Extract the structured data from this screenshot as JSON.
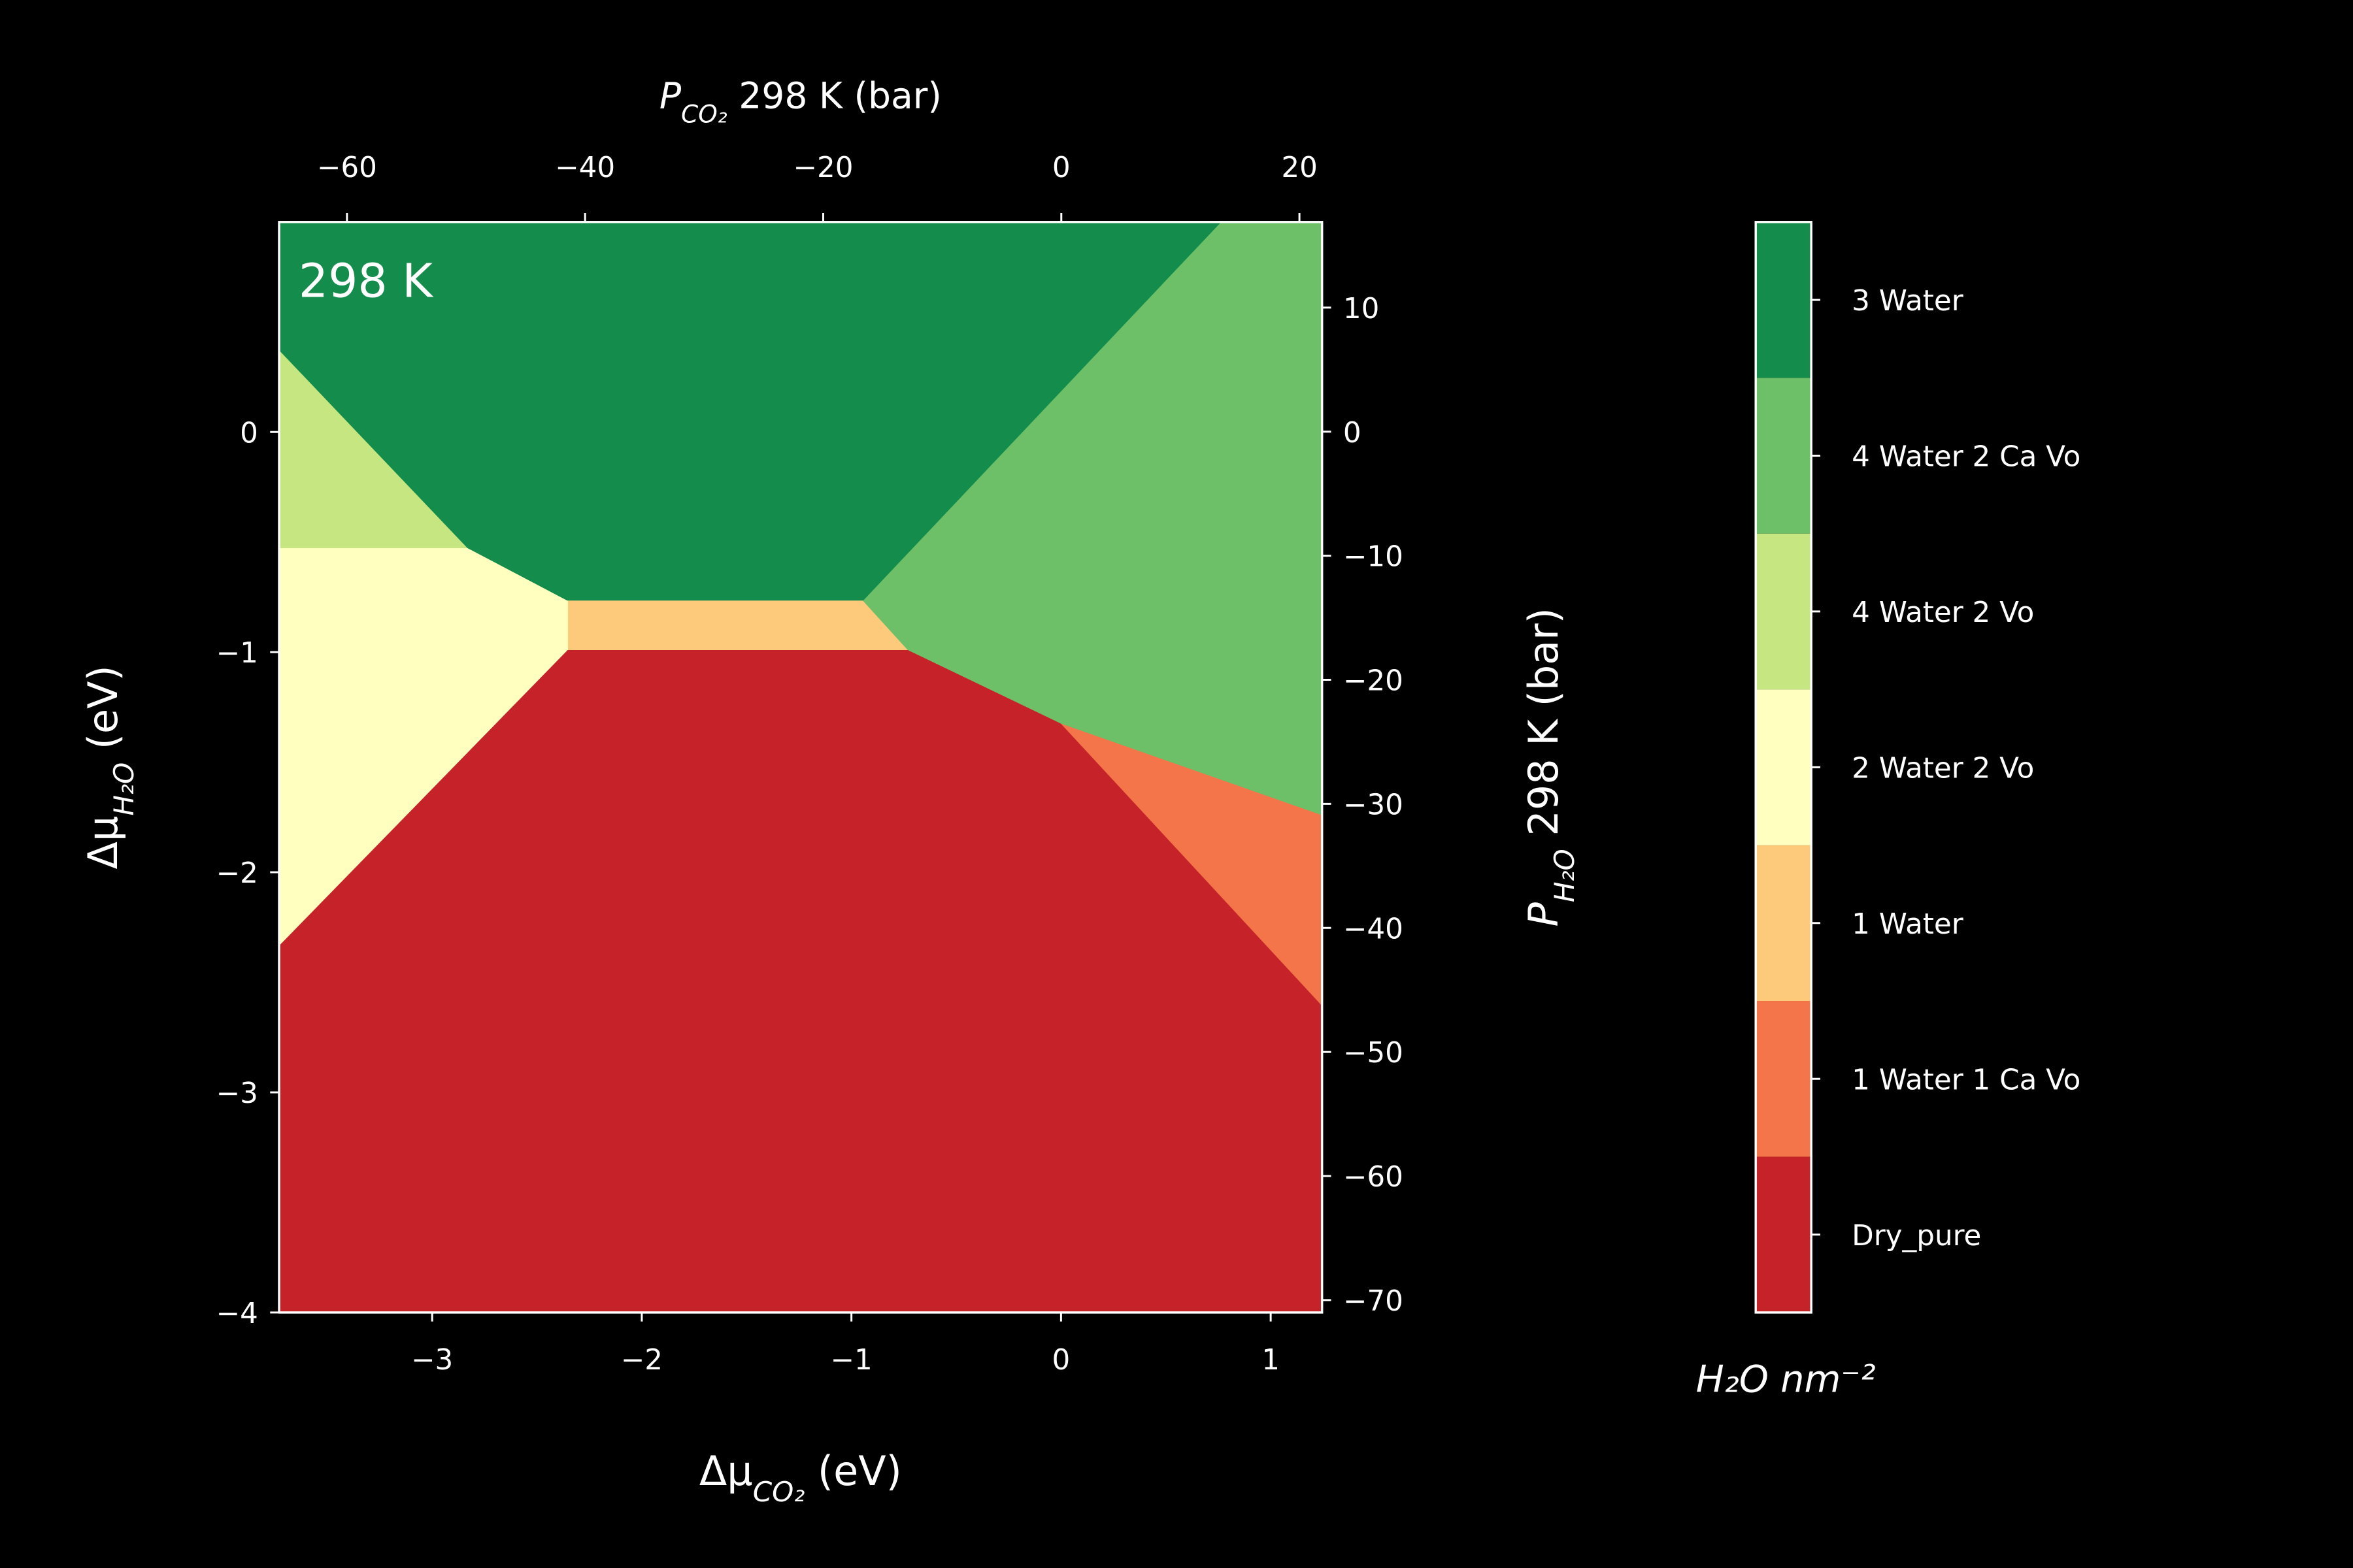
{
  "chart_data": {
    "type": "phase",
    "annotation": "298 K",
    "xlabel": [
      {
        "text": "Δμ"
      },
      {
        "text": "CO₂",
        "sub": true
      },
      {
        "text": " (eV)"
      }
    ],
    "ylabel": [
      {
        "text": "Δμ"
      },
      {
        "text": "H₂O",
        "sub": true
      },
      {
        "text": " (eV)"
      }
    ],
    "x2label": [
      {
        "text": "P"
      },
      {
        "text": "CO₂",
        "sub": true
      },
      {
        "text": " 298 K (bar)"
      }
    ],
    "y2label": [
      {
        "text": "P"
      },
      {
        "text": "H₂O",
        "sub": true
      },
      {
        "text": " 298 K (bar)"
      }
    ],
    "xlim": [
      -3.73,
      1.245
    ],
    "xticks": [
      {
        "value": -3,
        "label": "−3"
      },
      {
        "value": -2,
        "label": "−2"
      },
      {
        "value": -1,
        "label": "−1"
      },
      0,
      1
    ],
    "ylim": [
      -4,
      0.954
    ],
    "yticks": [
      {
        "value": -4,
        "label": "−4"
      },
      {
        "value": -3,
        "label": "−3"
      },
      {
        "value": -2,
        "label": "−2"
      },
      {
        "value": -1,
        "label": "−1"
      },
      0
    ],
    "x2lim": [
      -65.7,
      21.9
    ],
    "x2ticks": [
      {
        "value": -60,
        "label": "−60"
      },
      {
        "value": -40,
        "label": "−40"
      },
      {
        "value": -20,
        "label": "−20"
      },
      0,
      20
    ],
    "y2lim": [
      -71.0,
      16.9
    ],
    "y2ticks": [
      10,
      0,
      {
        "value": -10,
        "label": "−10"
      },
      {
        "value": -20,
        "label": "−20"
      },
      {
        "value": -30,
        "label": "−30"
      },
      {
        "value": -40,
        "label": "−40"
      },
      {
        "value": -50,
        "label": "−50"
      },
      {
        "value": -60,
        "label": "−60"
      },
      {
        "value": -70,
        "label": "−70"
      }
    ],
    "colorbar_label": "H₂O nm⁻²",
    "series": [
      {
        "name": "Dry_pure",
        "color": "#c6222a",
        "x": [
          -3.73,
          -2.355,
          -0.73,
          0,
          1.245,
          1.245,
          -3.73
        ],
        "y": [
          -2.33,
          -0.988,
          -0.988,
          -1.322,
          -2.603,
          -4,
          -4
        ]
      },
      {
        "name": "1 Water 1 Ca Vo",
        "color": "#f47549",
        "x": [
          0,
          1.245,
          1.245
        ],
        "y": [
          -1.322,
          -1.738,
          -2.603
        ]
      },
      {
        "name": "1 Water",
        "color": "#fdc97b",
        "x": [
          -2.355,
          -0.945,
          -0.73,
          -2.355
        ],
        "y": [
          -0.763,
          -0.763,
          -0.988,
          -0.988
        ]
      },
      {
        "name": "2 Water 2 Vo",
        "color": "#ffffbf",
        "x": [
          -3.73,
          -2.83,
          -2.355,
          -2.355,
          -3.73
        ],
        "y": [
          -0.525,
          -0.525,
          -0.763,
          -0.988,
          -2.33
        ]
      },
      {
        "name": "4 Water 2 Vo",
        "color": "#c5e680",
        "x": [
          -3.73,
          -2.83,
          -3.73
        ],
        "y": [
          0.375,
          -0.525,
          -0.525
        ]
      },
      {
        "name": "4 Water 2 Ca Vo",
        "color": "#6ec068",
        "x": [
          0.76,
          1.245,
          1.245,
          0,
          -0.73,
          -0.945
        ],
        "y": [
          0.954,
          0.954,
          -1.738,
          -1.322,
          -0.988,
          -0.763
        ]
      },
      {
        "name": "3 Water",
        "color": "#138c4c",
        "x": [
          -3.73,
          -3.73,
          -2.83,
          -2.355,
          -0.945,
          0.76
        ],
        "y": [
          0.954,
          0.375,
          -0.525,
          -0.763,
          -0.763,
          0.954
        ]
      }
    ]
  }
}
